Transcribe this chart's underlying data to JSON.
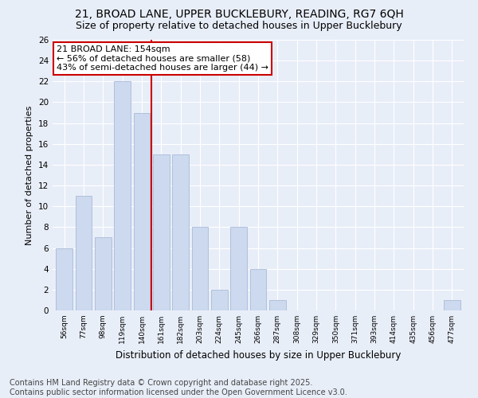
{
  "title1": "21, BROAD LANE, UPPER BUCKLEBURY, READING, RG7 6QH",
  "title2": "Size of property relative to detached houses in Upper Bucklebury",
  "xlabel": "Distribution of detached houses by size in Upper Bucklebury",
  "ylabel": "Number of detached properties",
  "categories": [
    "56sqm",
    "77sqm",
    "98sqm",
    "119sqm",
    "140sqm",
    "161sqm",
    "182sqm",
    "203sqm",
    "224sqm",
    "245sqm",
    "266sqm",
    "287sqm",
    "308sqm",
    "329sqm",
    "350sqm",
    "371sqm",
    "393sqm",
    "414sqm",
    "435sqm",
    "456sqm",
    "477sqm"
  ],
  "values": [
    6,
    11,
    7,
    22,
    19,
    15,
    15,
    8,
    2,
    8,
    4,
    1,
    0,
    0,
    0,
    0,
    0,
    0,
    0,
    0,
    1
  ],
  "bar_color": "#ccd9ee",
  "bar_edge_color": "#aabbd8",
  "vline_x": 4.5,
  "vline_color": "#cc0000",
  "annotation_text": "21 BROAD LANE: 154sqm\n← 56% of detached houses are smaller (58)\n43% of semi-detached houses are larger (44) →",
  "annotation_box_color": "#ffffff",
  "annotation_box_edge": "#cc0000",
  "ylim": [
    0,
    26
  ],
  "yticks": [
    0,
    2,
    4,
    6,
    8,
    10,
    12,
    14,
    16,
    18,
    20,
    22,
    24,
    26
  ],
  "footer": "Contains HM Land Registry data © Crown copyright and database right 2025.\nContains public sector information licensed under the Open Government Licence v3.0.",
  "bg_color": "#e8eef8",
  "grid_color": "#ffffff",
  "title_fontsize": 10,
  "subtitle_fontsize": 9,
  "annotation_fontsize": 8,
  "footer_fontsize": 7,
  "ylabel_fontsize": 8,
  "xlabel_fontsize": 8.5
}
